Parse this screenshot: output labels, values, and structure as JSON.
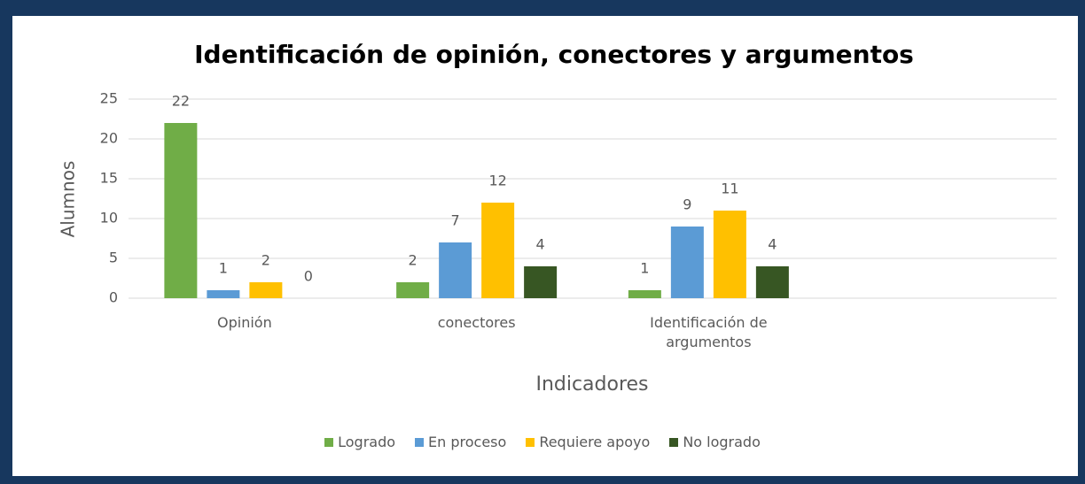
{
  "chart_data": {
    "type": "bar",
    "title": "Identificación de opinión, conectores y argumentos",
    "x_label": "Indicadores",
    "y_label": "Alumnos",
    "categories": [
      "Opinión",
      "conectores",
      "Identificación de argumentos",
      null
    ],
    "series": [
      {
        "name": "Logrado",
        "color": "#70ad47",
        "values": [
          22,
          2,
          1,
          null
        ]
      },
      {
        "name": "En proceso",
        "color": "#5b9bd5",
        "values": [
          1,
          7,
          9,
          null
        ]
      },
      {
        "name": "Requiere apoyo",
        "color": "#ffc000",
        "values": [
          2,
          12,
          11,
          null
        ]
      },
      {
        "name": "No logrado",
        "color": "#375623",
        "values": [
          0,
          4,
          4,
          null
        ]
      }
    ],
    "ylim": [
      0,
      25
    ],
    "yticks": [
      0,
      5,
      10,
      15,
      20,
      25
    ],
    "grid": true,
    "legend": "bottom"
  }
}
